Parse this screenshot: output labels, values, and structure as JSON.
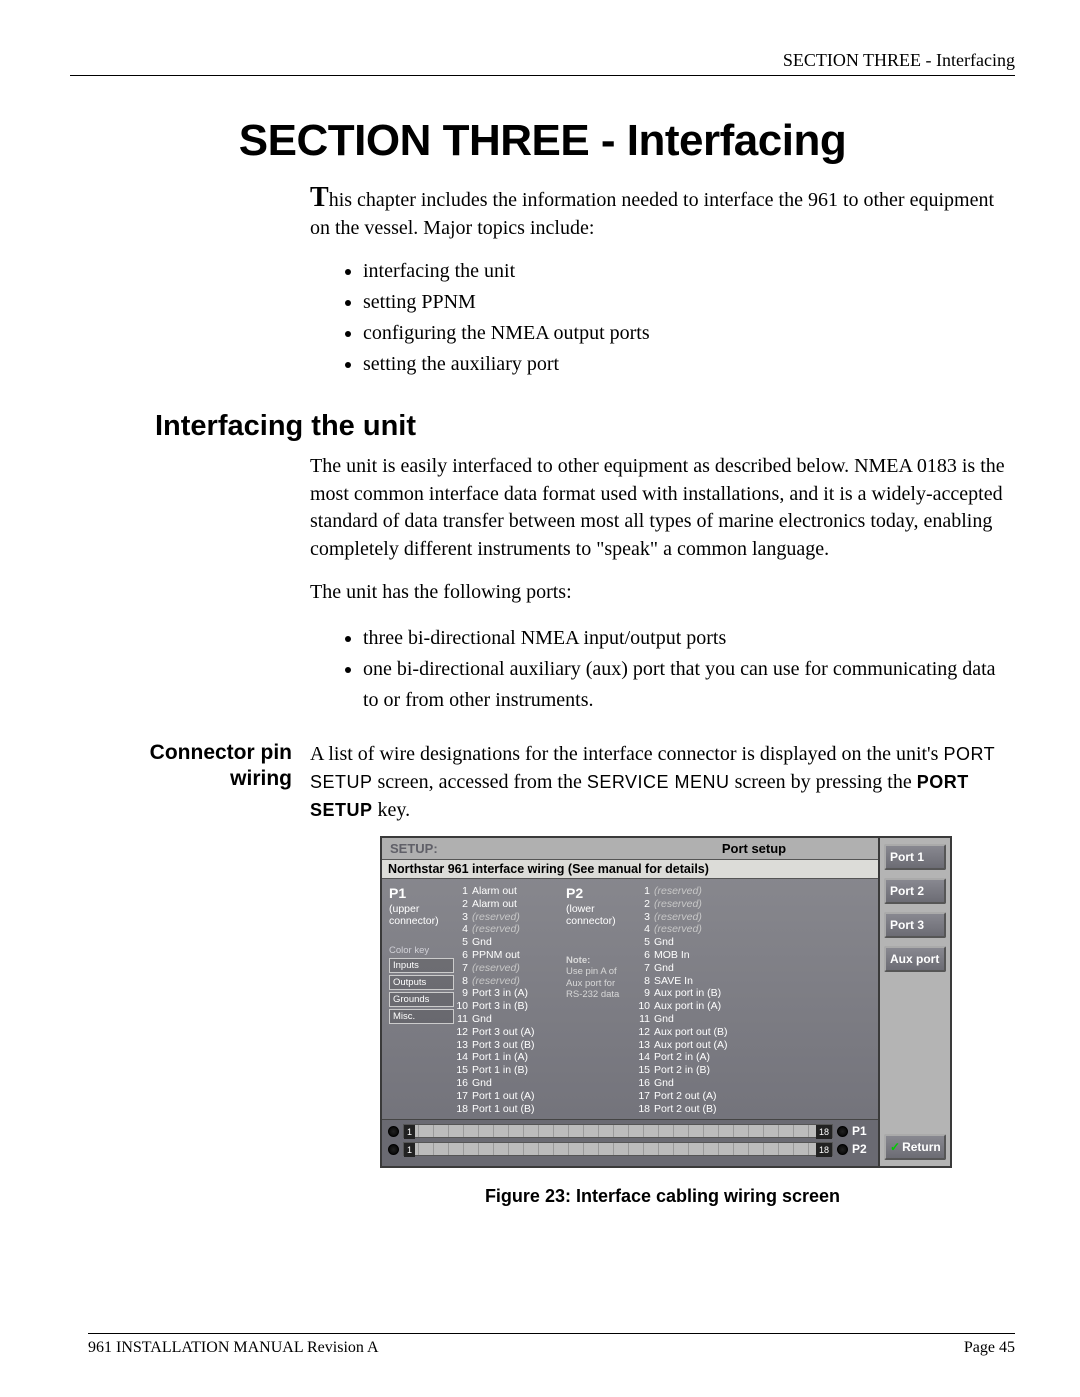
{
  "header": {
    "right": "SECTION THREE - Interfacing"
  },
  "title": "SECTION THREE - Interfacing",
  "intro": {
    "dropcap": "T",
    "text": "his chapter includes the information needed to interface the 961 to other equipment on the vessel. Major topics include:"
  },
  "intro_bullets": [
    "interfacing the unit",
    "setting PPNM",
    "configuring the NMEA output ports",
    "setting the auxiliary port"
  ],
  "h2": "Interfacing the unit",
  "para1": "The unit is easily interfaced to other equipment as described below. NMEA 0183 is the most common interface data format used with installations, and it is a widely-accepted standard of data transfer between most all types of marine electronics today, enabling completely different instruments to \"speak\" a common language.",
  "para2": "The unit has the following ports:",
  "port_bullets": [
    "three bi-directional NMEA input/output ports",
    "one bi-directional auxiliary (aux) port that you can use for communicating data to or from other instruments."
  ],
  "connector": {
    "side_label_l1": "Connector pin",
    "side_label_l2": "wiring",
    "text_a": "A list of wire designations for the interface connector is displayed on the unit's",
    "text_b": "screen, accessed from the",
    "text_c": "screen by pressing the",
    "text_d": "key.",
    "sc1": "PORT SETUP",
    "sc2": "SERVICE MENU",
    "sc3": "PORT SETUP"
  },
  "screen": {
    "setup_label": "SETUP:",
    "port_label": "Port setup",
    "subtitle": "Northstar 961 interface wiring (See manual for details)",
    "p1": {
      "label": "P1",
      "conn": "(upper connector)"
    },
    "p2": {
      "label": "P2",
      "conn": "(lower connector)"
    },
    "legend_title": "Color key",
    "legend": [
      "Inputs",
      "Outputs",
      "Grounds",
      "Misc."
    ],
    "note_title": "Note:",
    "note_body": "Use pin A of Aux port for RS-232 data",
    "pins_p1": [
      {
        "n": "1",
        "t": "Alarm out",
        "r": false
      },
      {
        "n": "2",
        "t": "Alarm out",
        "r": false
      },
      {
        "n": "3",
        "t": "(reserved)",
        "r": true
      },
      {
        "n": "4",
        "t": "(reserved)",
        "r": true
      },
      {
        "n": "5",
        "t": "Gnd",
        "r": false
      },
      {
        "n": "6",
        "t": "PPNM out",
        "r": false
      },
      {
        "n": "7",
        "t": "(reserved)",
        "r": true
      },
      {
        "n": "8",
        "t": "(reserved)",
        "r": true
      },
      {
        "n": "9",
        "t": "Port 3 in (A)",
        "r": false
      },
      {
        "n": "10",
        "t": "Port 3 in (B)",
        "r": false
      },
      {
        "n": "11",
        "t": "Gnd",
        "r": false
      },
      {
        "n": "12",
        "t": "Port 3 out (A)",
        "r": false
      },
      {
        "n": "13",
        "t": "Port 3 out (B)",
        "r": false
      },
      {
        "n": "14",
        "t": "Port 1 in (A)",
        "r": false
      },
      {
        "n": "15",
        "t": "Port 1 in (B)",
        "r": false
      },
      {
        "n": "16",
        "t": "Gnd",
        "r": false
      },
      {
        "n": "17",
        "t": "Port 1 out (A)",
        "r": false
      },
      {
        "n": "18",
        "t": "Port 1 out (B)",
        "r": false
      }
    ],
    "pins_p2": [
      {
        "n": "1",
        "t": "(reserved)",
        "r": true
      },
      {
        "n": "2",
        "t": "(reserved)",
        "r": true
      },
      {
        "n": "3",
        "t": "(reserved)",
        "r": true
      },
      {
        "n": "4",
        "t": "(reserved)",
        "r": true
      },
      {
        "n": "5",
        "t": "Gnd",
        "r": false
      },
      {
        "n": "6",
        "t": "MOB In",
        "r": false
      },
      {
        "n": "7",
        "t": "Gnd",
        "r": false
      },
      {
        "n": "8",
        "t": "SAVE In",
        "r": false
      },
      {
        "n": "9",
        "t": "Aux port in (B)",
        "r": false
      },
      {
        "n": "10",
        "t": "Aux port in (A)",
        "r": false
      },
      {
        "n": "11",
        "t": "Gnd",
        "r": false
      },
      {
        "n": "12",
        "t": "Aux port out (B)",
        "r": false
      },
      {
        "n": "13",
        "t": "Aux port out (A)",
        "r": false
      },
      {
        "n": "14",
        "t": "Port 2 in (A)",
        "r": false
      },
      {
        "n": "15",
        "t": "Port 2 in (B)",
        "r": false
      },
      {
        "n": "16",
        "t": "Gnd",
        "r": false
      },
      {
        "n": "17",
        "t": "Port 2 out (A)",
        "r": false
      },
      {
        "n": "18",
        "t": "Port 2 out (B)",
        "r": false
      }
    ],
    "side_buttons": [
      "Port 1",
      "Port 2",
      "Port 3",
      "Aux port"
    ],
    "return_label": "Return",
    "conn_left": "1",
    "conn_right": "18",
    "conn_p1": "P1",
    "conn_p2": "P2"
  },
  "figure_caption": "Figure 23:  Interface cabling wiring screen",
  "footer": {
    "left": "961 INSTALLATION MANUAL Revision A",
    "right": "Page 45"
  }
}
